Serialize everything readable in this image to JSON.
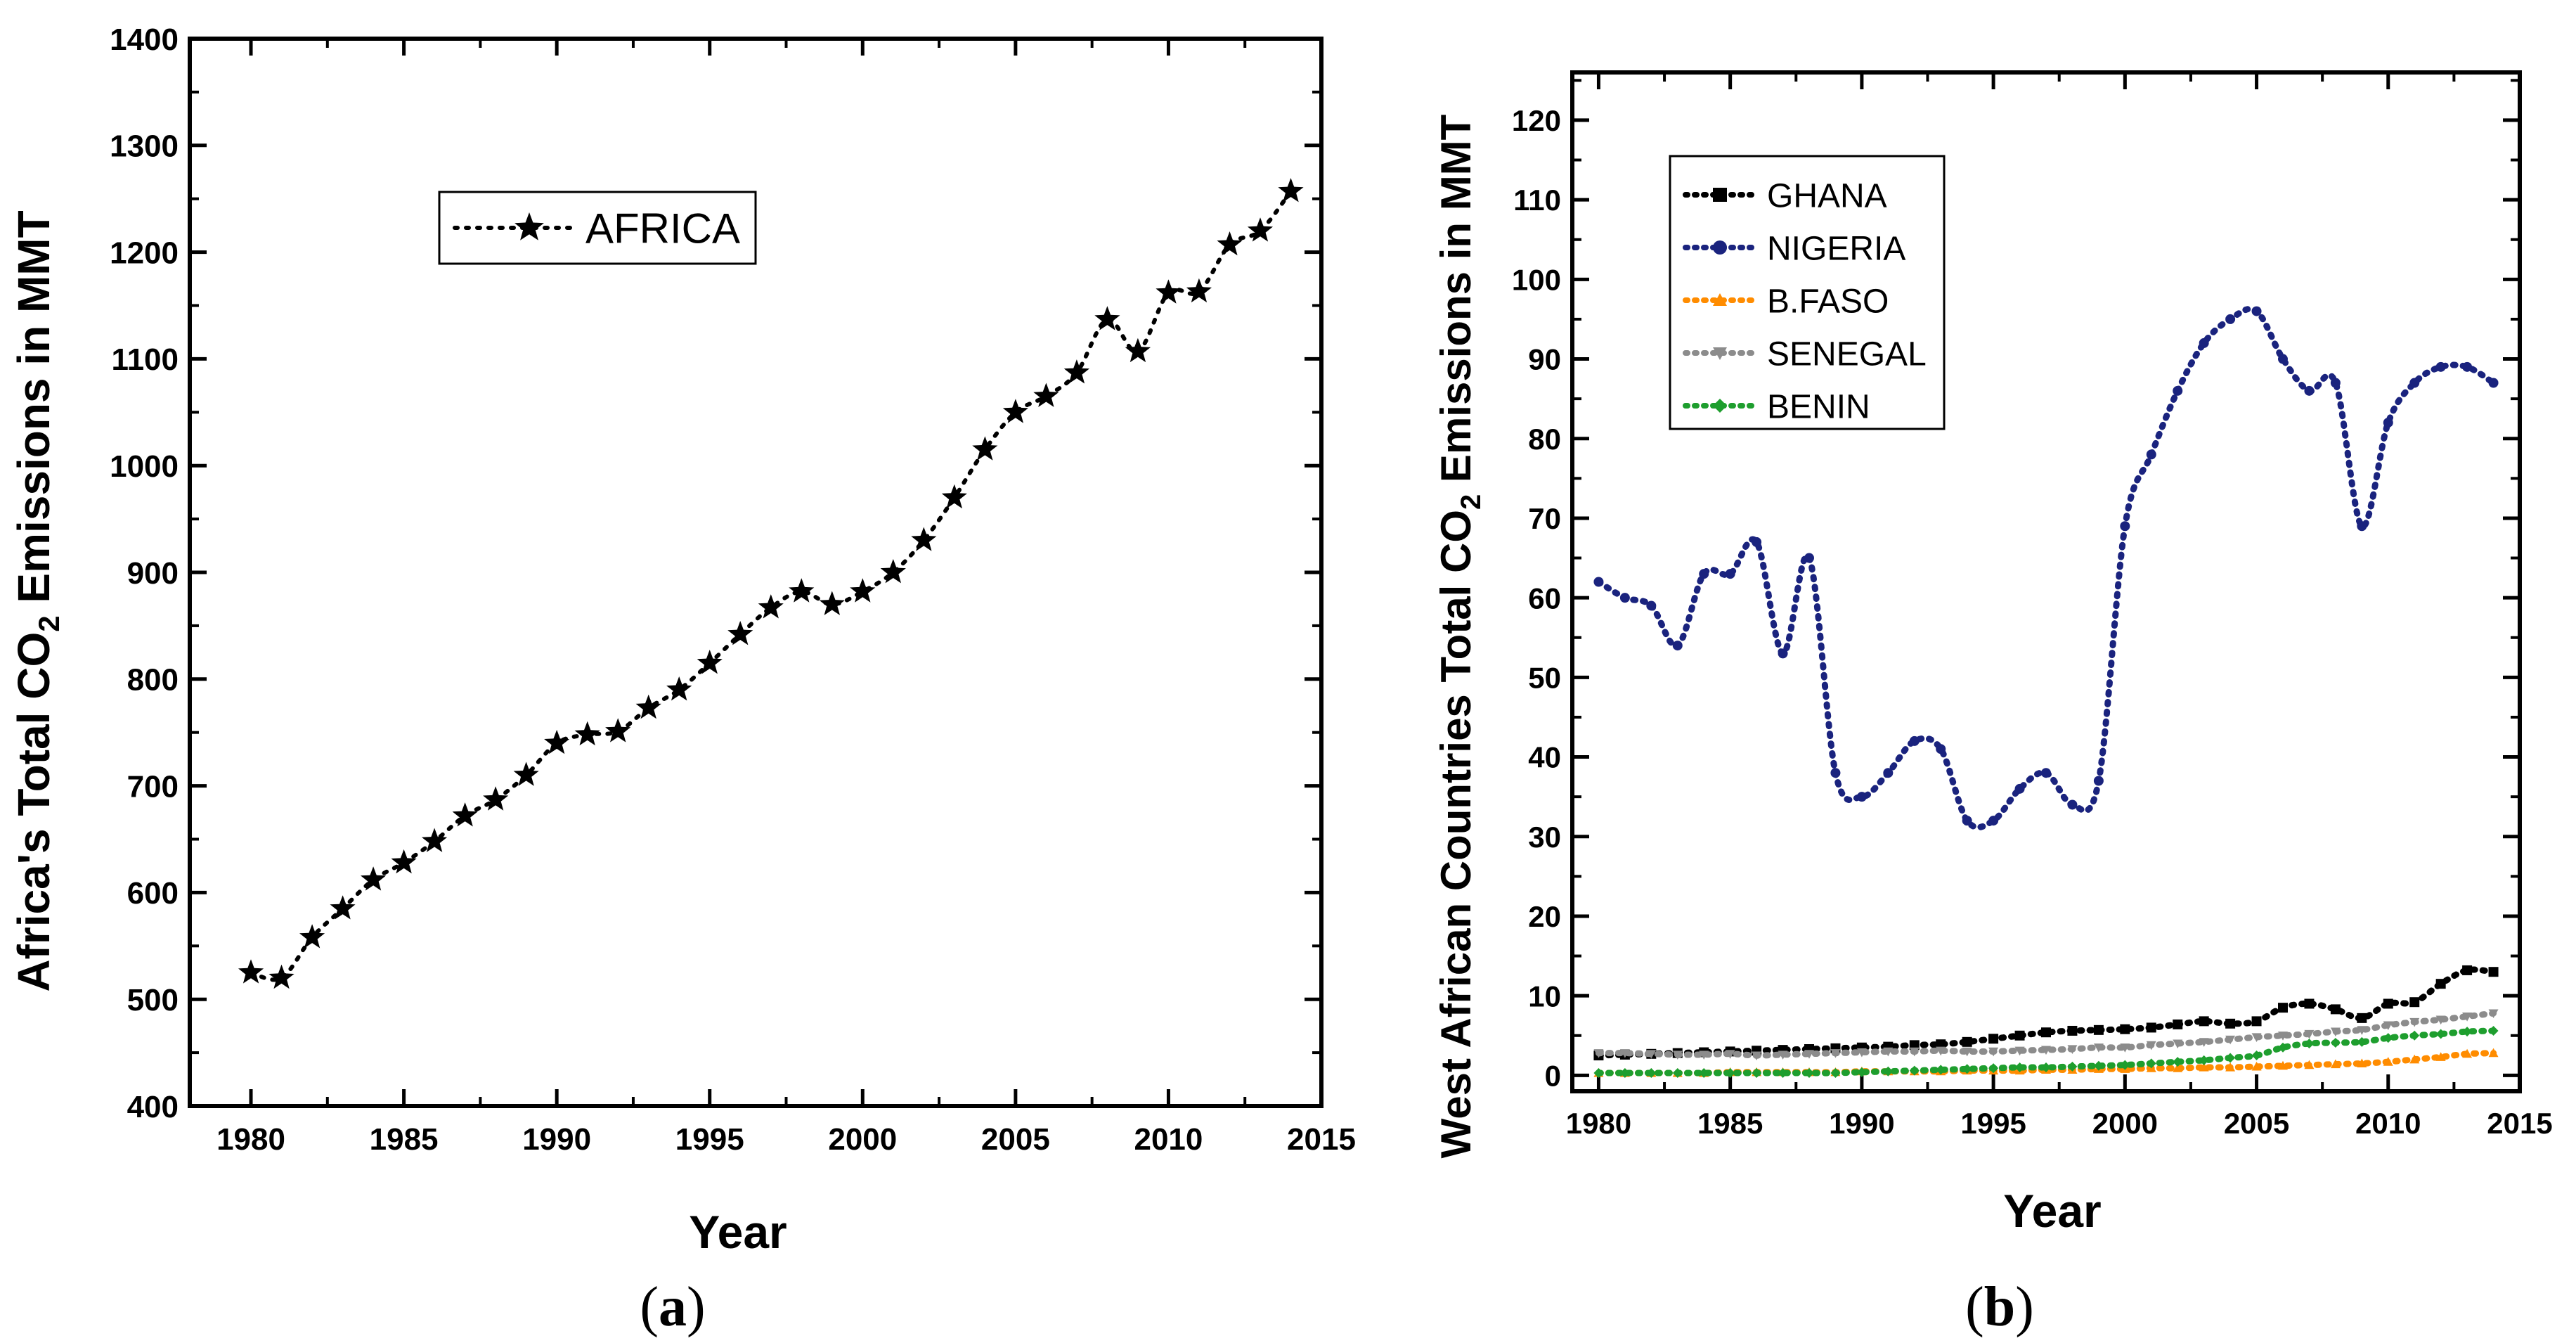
{
  "chart_data": [
    {
      "type": "line",
      "panel": "a",
      "caption_open": "(",
      "caption_letter": "a",
      "caption_close": ")",
      "title": "",
      "xlabel": "Year",
      "ylabel_parts": [
        "Africa's Total CO",
        "2",
        " Emissions in MMT"
      ],
      "xlim": [
        1978,
        2015
      ],
      "ylim": [
        400,
        1400
      ],
      "xticks": [
        1980,
        1985,
        1990,
        1995,
        2000,
        2005,
        2010,
        2015
      ],
      "yticks": [
        400,
        500,
        600,
        700,
        800,
        900,
        1000,
        1100,
        1200,
        1300,
        1400
      ],
      "legend_position": "top-left",
      "series": [
        {
          "name": "AFRICA",
          "color": "#000000",
          "marker": "star",
          "x": [
            1980,
            1981,
            1982,
            1983,
            1984,
            1985,
            1986,
            1987,
            1988,
            1989,
            1990,
            1991,
            1992,
            1993,
            1994,
            1995,
            1996,
            1997,
            1998,
            1999,
            2000,
            2001,
            2002,
            2003,
            2004,
            2005,
            2006,
            2007,
            2008,
            2009,
            2010,
            2011,
            2012,
            2013,
            2014
          ],
          "values": [
            525,
            520,
            558,
            585,
            612,
            628,
            648,
            672,
            687,
            710,
            740,
            748,
            751,
            773,
            790,
            815,
            842,
            867,
            882,
            870,
            882,
            900,
            930,
            970,
            1015,
            1050,
            1065,
            1087,
            1137,
            1107,
            1162,
            1163,
            1207,
            1220,
            1257
          ]
        }
      ]
    },
    {
      "type": "line",
      "panel": "b",
      "caption_open": "(",
      "caption_letter": "b",
      "caption_close": ")",
      "title": "",
      "xlabel": "Year",
      "ylabel_parts": [
        "West African Countries Total CO",
        "2",
        " Emissions in MMT"
      ],
      "xlim": [
        1979,
        2015
      ],
      "ylim": [
        -2,
        126
      ],
      "xticks": [
        1980,
        1985,
        1990,
        1995,
        2000,
        2005,
        2010,
        2015
      ],
      "yticks": [
        0,
        10,
        20,
        30,
        40,
        50,
        60,
        70,
        80,
        90,
        100,
        110,
        120
      ],
      "legend_position": "top-left",
      "series": [
        {
          "name": "GHANA",
          "color": "#000000",
          "marker": "square",
          "x": [
            1980,
            1981,
            1982,
            1983,
            1984,
            1985,
            1986,
            1987,
            1988,
            1989,
            1990,
            1991,
            1992,
            1993,
            1994,
            1995,
            1996,
            1997,
            1998,
            1999,
            2000,
            2001,
            2002,
            2003,
            2004,
            2005,
            2006,
            2007,
            2008,
            2009,
            2010,
            2011,
            2012,
            2013,
            2014
          ],
          "values": [
            2.5,
            2.6,
            2.7,
            2.8,
            2.9,
            3.0,
            3.1,
            3.2,
            3.3,
            3.4,
            3.5,
            3.6,
            3.8,
            3.9,
            4.2,
            4.6,
            5.0,
            5.4,
            5.6,
            5.7,
            5.8,
            6.0,
            6.4,
            6.8,
            6.5,
            6.8,
            8.5,
            9.0,
            8.3,
            7.2,
            9.0,
            9.2,
            11.5,
            13.2,
            13.0
          ]
        },
        {
          "name": "NIGERIA",
          "color": "#1a237e",
          "marker": "circle",
          "x": [
            1980,
            1981,
            1982,
            1983,
            1984,
            1985,
            1986,
            1987,
            1988,
            1989,
            1990,
            1991,
            1992,
            1993,
            1994,
            1995,
            1996,
            1997,
            1998,
            1999,
            2000,
            2001,
            2002,
            2003,
            2004,
            2005,
            2006,
            2007,
            2008,
            2009,
            2010,
            2011,
            2012,
            2013,
            2014
          ],
          "values": [
            62,
            60,
            59,
            54,
            63,
            63,
            67,
            53,
            65,
            38,
            35,
            38,
            42,
            41,
            32,
            32,
            36,
            38,
            34,
            37,
            69,
            78,
            86,
            92,
            95,
            96,
            90,
            86,
            87,
            69,
            82,
            87,
            89,
            89,
            87
          ]
        },
        {
          "name": "B.FASO",
          "color": "#ff8c00",
          "marker": "triangle-up",
          "x": [
            1980,
            1981,
            1982,
            1983,
            1984,
            1985,
            1986,
            1987,
            1988,
            1989,
            1990,
            1991,
            1992,
            1993,
            1994,
            1995,
            1996,
            1997,
            1998,
            1999,
            2000,
            2001,
            2002,
            2003,
            2004,
            2005,
            2006,
            2007,
            2008,
            2009,
            2010,
            2011,
            2012,
            2013,
            2014
          ],
          "values": [
            0.3,
            0.3,
            0.3,
            0.3,
            0.3,
            0.4,
            0.4,
            0.4,
            0.4,
            0.4,
            0.5,
            0.5,
            0.5,
            0.5,
            0.6,
            0.6,
            0.6,
            0.7,
            0.7,
            0.8,
            0.8,
            0.9,
            0.9,
            1.0,
            1.0,
            1.1,
            1.2,
            1.3,
            1.4,
            1.5,
            1.7,
            2.0,
            2.3,
            2.7,
            2.8
          ]
        },
        {
          "name": "SENEGAL",
          "color": "#8c8c8c",
          "marker": "triangle-down",
          "x": [
            1980,
            1981,
            1982,
            1983,
            1984,
            1985,
            1986,
            1987,
            1988,
            1989,
            1990,
            1991,
            1992,
            1993,
            1994,
            1995,
            1996,
            1997,
            1998,
            1999,
            2000,
            2001,
            2002,
            2003,
            2004,
            2005,
            2006,
            2007,
            2008,
            2009,
            2010,
            2011,
            2012,
            2013,
            2014
          ],
          "values": [
            2.8,
            2.8,
            2.7,
            2.6,
            2.6,
            2.7,
            2.5,
            2.6,
            2.7,
            2.8,
            2.9,
            3.0,
            3.0,
            3.1,
            3.0,
            3.0,
            3.1,
            3.2,
            3.3,
            3.5,
            3.5,
            3.8,
            4.0,
            4.2,
            4.5,
            4.8,
            5.0,
            5.2,
            5.5,
            5.7,
            6.3,
            6.7,
            7.0,
            7.4,
            7.8
          ]
        },
        {
          "name": "BENIN",
          "color": "#1e9e2e",
          "marker": "diamond",
          "x": [
            1980,
            1981,
            1982,
            1983,
            1984,
            1985,
            1986,
            1987,
            1988,
            1989,
            1990,
            1991,
            1992,
            1993,
            1994,
            1995,
            1996,
            1997,
            1998,
            1999,
            2000,
            2001,
            2002,
            2003,
            2004,
            2005,
            2006,
            2007,
            2008,
            2009,
            2010,
            2011,
            2012,
            2013,
            2014
          ],
          "values": [
            0.3,
            0.3,
            0.3,
            0.3,
            0.3,
            0.3,
            0.3,
            0.3,
            0.3,
            0.3,
            0.4,
            0.5,
            0.6,
            0.7,
            0.8,
            0.9,
            1.0,
            1.0,
            1.1,
            1.2,
            1.3,
            1.5,
            1.7,
            1.9,
            2.2,
            2.5,
            3.5,
            4.0,
            4.1,
            4.2,
            4.7,
            5.0,
            5.2,
            5.5,
            5.6
          ]
        }
      ]
    }
  ]
}
